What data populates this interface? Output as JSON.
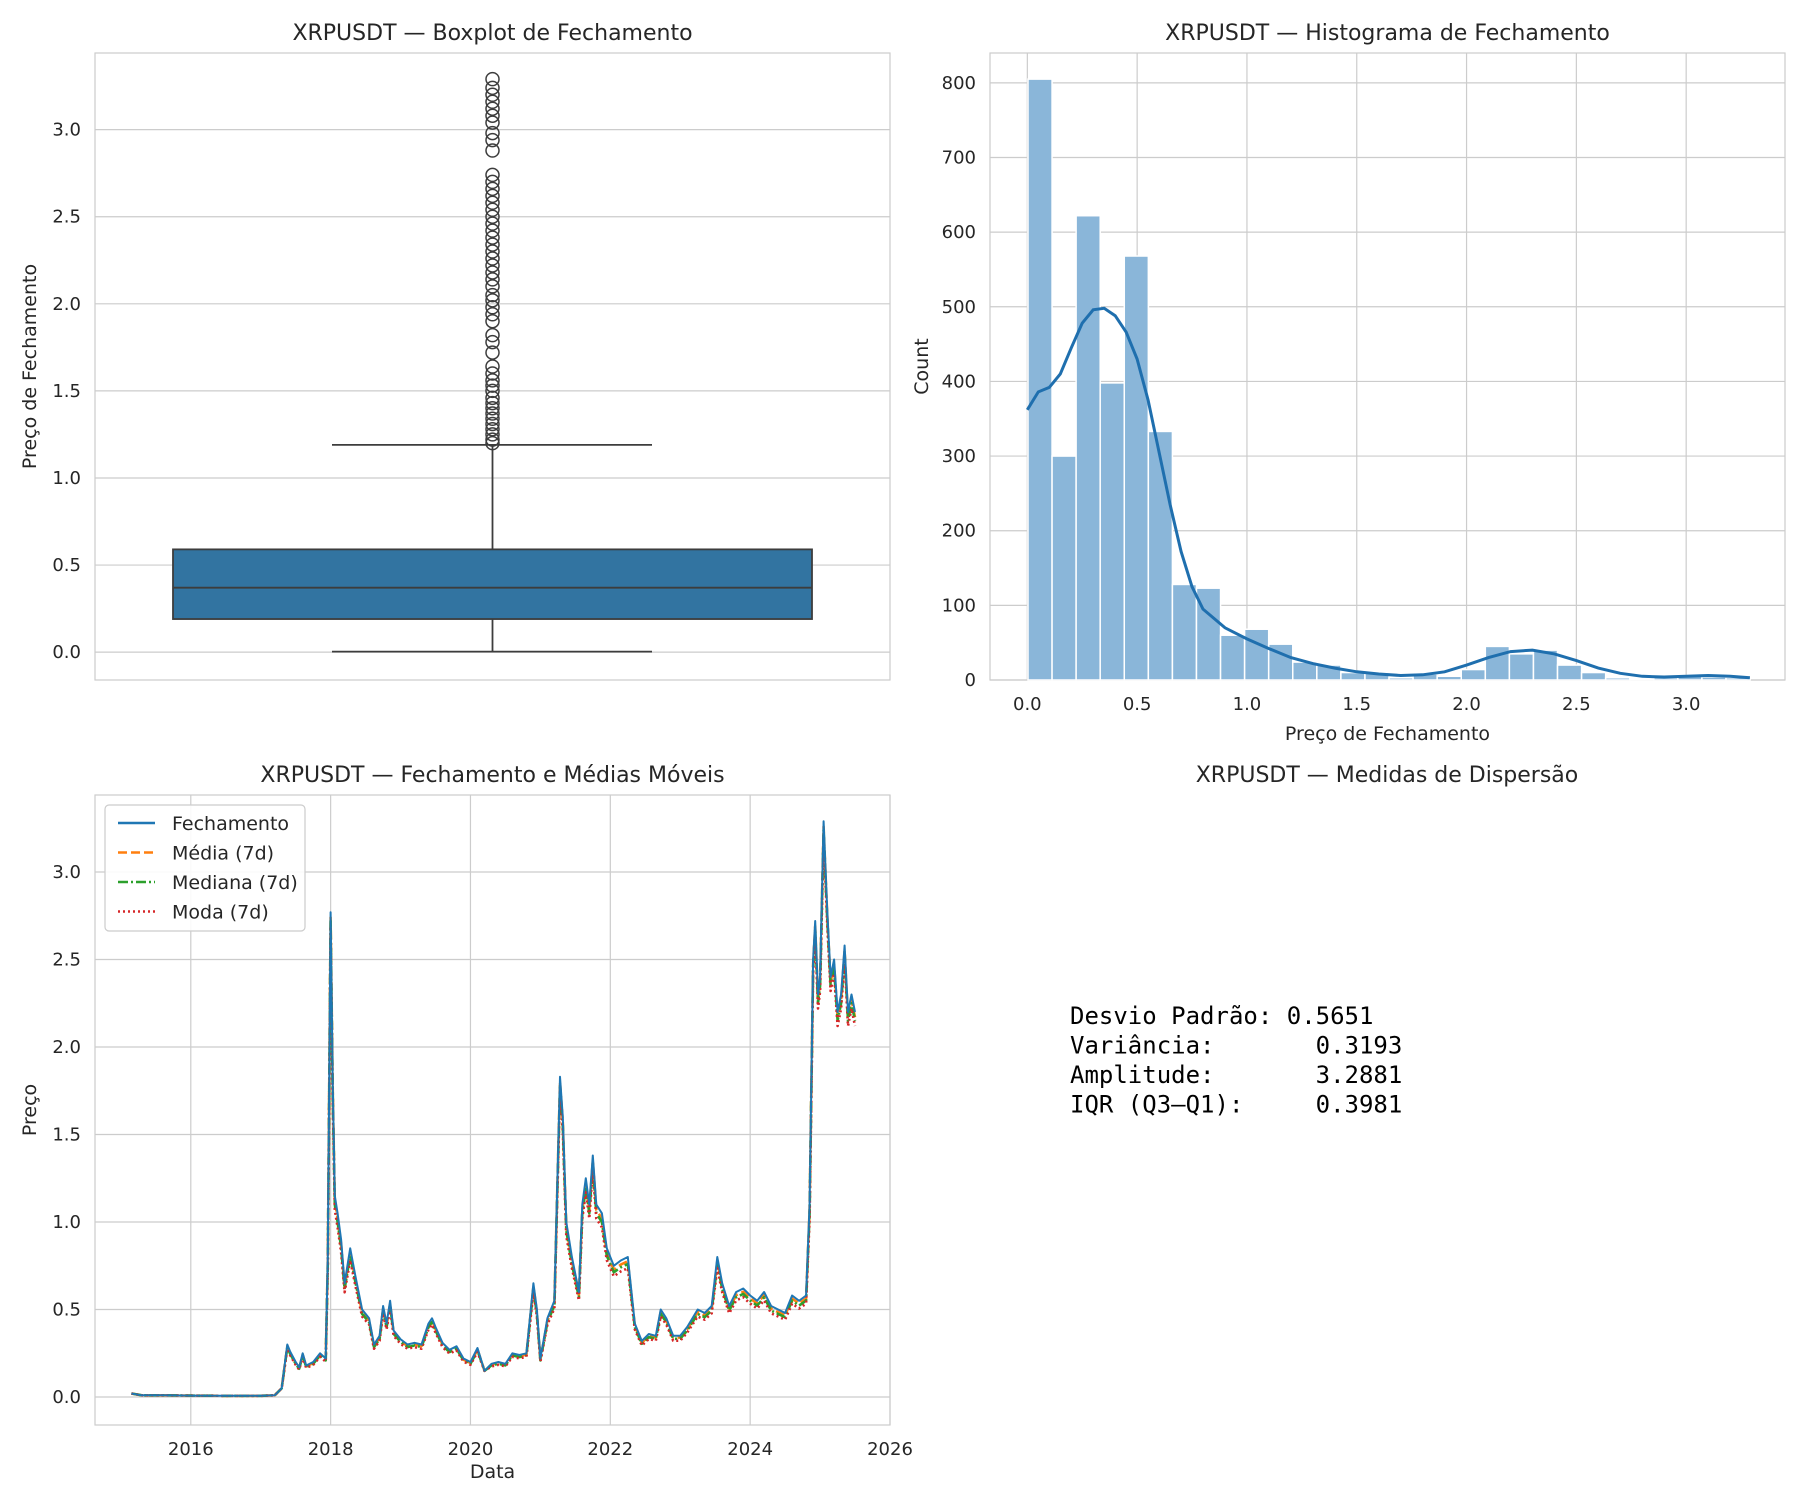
{
  "chart_data": [
    {
      "type": "box",
      "title": "XRPUSDT — Boxplot de Fechamento",
      "xlabel": "",
      "ylabel": "Preço de Fechamento",
      "ylim": [
        -0.16,
        3.44
      ],
      "yticks": [
        "0.0",
        "0.5",
        "1.0",
        "1.5",
        "2.0",
        "2.5",
        "3.0"
      ],
      "color": "#3274a1",
      "stats": {
        "min": 0.003,
        "q1": 0.19,
        "median": 0.37,
        "q3": 0.59,
        "whisker_high": 1.19
      },
      "outliers": [
        1.2,
        1.22,
        1.25,
        1.28,
        1.31,
        1.34,
        1.37,
        1.4,
        1.43,
        1.46,
        1.5,
        1.53,
        1.56,
        1.6,
        1.64,
        1.72,
        1.78,
        1.82,
        1.9,
        1.94,
        1.98,
        2.02,
        2.05,
        2.1,
        2.14,
        2.18,
        2.22,
        2.26,
        2.3,
        2.34,
        2.38,
        2.42,
        2.46,
        2.5,
        2.54,
        2.58,
        2.62,
        2.66,
        2.7,
        2.74,
        2.88,
        2.94,
        2.98,
        3.04,
        3.08,
        3.12,
        3.16,
        3.2,
        3.24,
        3.29
      ]
    },
    {
      "type": "bar",
      "title": "XRPUSDT — Histograma de Fechamento",
      "xlabel": "Preço de Fechamento",
      "ylabel": "Count",
      "xlim": [
        -0.17,
        3.45
      ],
      "ylim": [
        0,
        840
      ],
      "xticks": [
        "0.0",
        "0.5",
        "1.0",
        "1.5",
        "2.0",
        "2.5",
        "3.0"
      ],
      "yticks": [
        "0",
        "100",
        "200",
        "300",
        "400",
        "500",
        "600",
        "700",
        "800"
      ],
      "bin_width": 0.1096,
      "bin_start": 0.003,
      "counts": [
        805,
        300,
        622,
        398,
        568,
        333,
        128,
        123,
        60,
        68,
        48,
        24,
        20,
        10,
        10,
        3,
        8,
        5,
        14,
        45,
        35,
        40,
        20,
        10,
        3,
        2,
        3,
        6,
        4,
        3
      ],
      "kde": [
        [
          0.0,
          362
        ],
        [
          0.05,
          386
        ],
        [
          0.1,
          392
        ],
        [
          0.15,
          410
        ],
        [
          0.2,
          445
        ],
        [
          0.25,
          478
        ],
        [
          0.3,
          496
        ],
        [
          0.35,
          498
        ],
        [
          0.4,
          488
        ],
        [
          0.45,
          466
        ],
        [
          0.5,
          430
        ],
        [
          0.55,
          375
        ],
        [
          0.6,
          305
        ],
        [
          0.65,
          235
        ],
        [
          0.7,
          172
        ],
        [
          0.75,
          125
        ],
        [
          0.8,
          95
        ],
        [
          0.9,
          70
        ],
        [
          1.0,
          55
        ],
        [
          1.1,
          42
        ],
        [
          1.2,
          30
        ],
        [
          1.3,
          22
        ],
        [
          1.4,
          16
        ],
        [
          1.5,
          11
        ],
        [
          1.6,
          8
        ],
        [
          1.7,
          6
        ],
        [
          1.8,
          7
        ],
        [
          1.9,
          11
        ],
        [
          2.0,
          20
        ],
        [
          2.1,
          30
        ],
        [
          2.2,
          38
        ],
        [
          2.3,
          40
        ],
        [
          2.4,
          35
        ],
        [
          2.5,
          26
        ],
        [
          2.6,
          16
        ],
        [
          2.7,
          9
        ],
        [
          2.8,
          5
        ],
        [
          2.9,
          4
        ],
        [
          3.0,
          5
        ],
        [
          3.1,
          6
        ],
        [
          3.2,
          5
        ],
        [
          3.29,
          3
        ]
      ],
      "bar_color": "#8ab6d9",
      "kde_color": "#1f6fae"
    },
    {
      "type": "line",
      "title": "XRPUSDT — Fechamento e Médias Móveis",
      "xlabel": "Data",
      "ylabel": "Preço",
      "xlim": [
        2014.63,
        2026.0
      ],
      "ylim": [
        -0.16,
        3.44
      ],
      "xticks": [
        "2016",
        "2018",
        "2020",
        "2022",
        "2024",
        "2026"
      ],
      "yticks": [
        "0.0",
        "0.5",
        "1.0",
        "1.5",
        "2.0",
        "2.5",
        "3.0"
      ],
      "legend": "upper left",
      "series": [
        {
          "name": "Fechamento",
          "color": "#1f77b4",
          "dash": "",
          "offset": 0
        },
        {
          "name": "Média (7d)",
          "color": "#ff7f0e",
          "dash": "9 4",
          "offset": -0.03
        },
        {
          "name": "Mediana (7d)",
          "color": "#2ca02c",
          "dash": "10 3 2 3",
          "offset": -0.05
        },
        {
          "name": "Moda (7d)",
          "color": "#d62728",
          "dash": "2 3",
          "offset": -0.08
        }
      ],
      "close": [
        [
          2015.15,
          0.02
        ],
        [
          2015.3,
          0.01
        ],
        [
          2015.6,
          0.01
        ],
        [
          2016.0,
          0.008
        ],
        [
          2016.5,
          0.007
        ],
        [
          2017.0,
          0.007
        ],
        [
          2017.2,
          0.01
        ],
        [
          2017.3,
          0.05
        ],
        [
          2017.38,
          0.3
        ],
        [
          2017.42,
          0.26
        ],
        [
          2017.5,
          0.2
        ],
        [
          2017.55,
          0.17
        ],
        [
          2017.6,
          0.25
        ],
        [
          2017.65,
          0.18
        ],
        [
          2017.75,
          0.2
        ],
        [
          2017.85,
          0.25
        ],
        [
          2017.93,
          0.22
        ],
        [
          2017.96,
          0.8
        ],
        [
          2018.0,
          2.77
        ],
        [
          2018.03,
          1.8
        ],
        [
          2018.06,
          1.15
        ],
        [
          2018.1,
          1.05
        ],
        [
          2018.15,
          0.9
        ],
        [
          2018.2,
          0.65
        ],
        [
          2018.28,
          0.85
        ],
        [
          2018.35,
          0.7
        ],
        [
          2018.45,
          0.5
        ],
        [
          2018.55,
          0.45
        ],
        [
          2018.62,
          0.3
        ],
        [
          2018.7,
          0.35
        ],
        [
          2018.75,
          0.52
        ],
        [
          2018.8,
          0.42
        ],
        [
          2018.85,
          0.55
        ],
        [
          2018.9,
          0.38
        ],
        [
          2019.0,
          0.33
        ],
        [
          2019.1,
          0.3
        ],
        [
          2019.2,
          0.31
        ],
        [
          2019.3,
          0.3
        ],
        [
          2019.4,
          0.42
        ],
        [
          2019.45,
          0.45
        ],
        [
          2019.5,
          0.4
        ],
        [
          2019.6,
          0.31
        ],
        [
          2019.7,
          0.27
        ],
        [
          2019.8,
          0.29
        ],
        [
          2019.9,
          0.22
        ],
        [
          2020.0,
          0.2
        ],
        [
          2020.1,
          0.28
        ],
        [
          2020.2,
          0.15
        ],
        [
          2020.3,
          0.19
        ],
        [
          2020.4,
          0.2
        ],
        [
          2020.5,
          0.19
        ],
        [
          2020.6,
          0.25
        ],
        [
          2020.7,
          0.24
        ],
        [
          2020.8,
          0.25
        ],
        [
          2020.9,
          0.65
        ],
        [
          2020.95,
          0.5
        ],
        [
          2021.0,
          0.22
        ],
        [
          2021.1,
          0.45
        ],
        [
          2021.15,
          0.5
        ],
        [
          2021.2,
          0.55
        ],
        [
          2021.28,
          1.83
        ],
        [
          2021.32,
          1.6
        ],
        [
          2021.37,
          1.0
        ],
        [
          2021.45,
          0.8
        ],
        [
          2021.55,
          0.6
        ],
        [
          2021.6,
          1.1
        ],
        [
          2021.65,
          1.25
        ],
        [
          2021.7,
          1.1
        ],
        [
          2021.75,
          1.38
        ],
        [
          2021.8,
          1.1
        ],
        [
          2021.88,
          1.05
        ],
        [
          2021.95,
          0.85
        ],
        [
          2022.05,
          0.75
        ],
        [
          2022.15,
          0.78
        ],
        [
          2022.25,
          0.8
        ],
        [
          2022.35,
          0.42
        ],
        [
          2022.45,
          0.32
        ],
        [
          2022.55,
          0.36
        ],
        [
          2022.65,
          0.35
        ],
        [
          2022.72,
          0.5
        ],
        [
          2022.8,
          0.45
        ],
        [
          2022.9,
          0.35
        ],
        [
          2023.0,
          0.35
        ],
        [
          2023.1,
          0.4
        ],
        [
          2023.25,
          0.5
        ],
        [
          2023.35,
          0.48
        ],
        [
          2023.45,
          0.52
        ],
        [
          2023.53,
          0.8
        ],
        [
          2023.6,
          0.65
        ],
        [
          2023.7,
          0.52
        ],
        [
          2023.8,
          0.6
        ],
        [
          2023.9,
          0.62
        ],
        [
          2024.0,
          0.58
        ],
        [
          2024.1,
          0.55
        ],
        [
          2024.2,
          0.6
        ],
        [
          2024.3,
          0.52
        ],
        [
          2024.4,
          0.5
        ],
        [
          2024.5,
          0.48
        ],
        [
          2024.6,
          0.58
        ],
        [
          2024.7,
          0.55
        ],
        [
          2024.8,
          0.58
        ],
        [
          2024.85,
          1.1
        ],
        [
          2024.9,
          2.5
        ],
        [
          2024.93,
          2.72
        ],
        [
          2024.97,
          2.3
        ],
        [
          2025.0,
          2.4
        ],
        [
          2025.05,
          3.29
        ],
        [
          2025.1,
          2.8
        ],
        [
          2025.15,
          2.4
        ],
        [
          2025.2,
          2.5
        ],
        [
          2025.25,
          2.2
        ],
        [
          2025.3,
          2.3
        ],
        [
          2025.35,
          2.58
        ],
        [
          2025.4,
          2.2
        ],
        [
          2025.45,
          2.3
        ],
        [
          2025.5,
          2.2
        ]
      ]
    }
  ],
  "dispersion_panel": {
    "title": "XRPUSDT — Medidas de Dispersão",
    "lines": [
      "Desvio Padrão: 0.5651",
      "Variância:       0.3193",
      "Amplitude:       3.2881",
      "IQR (Q3–Q1):     0.3981"
    ]
  }
}
